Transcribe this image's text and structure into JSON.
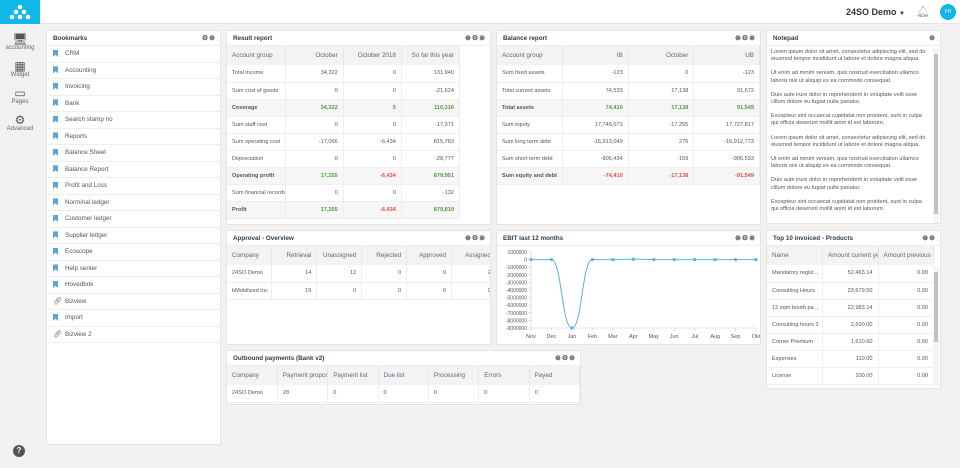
{
  "header": {
    "user": "24SO Demo",
    "avatar": "FH"
  },
  "rail": [
    {
      "label": "accounting",
      "icon": "monitor-icon"
    },
    {
      "label": "Widget",
      "icon": "grid-icon"
    },
    {
      "label": "Pages",
      "icon": "monitor-icon"
    },
    {
      "label": "Advanced",
      "icon": "gear-icon"
    }
  ],
  "bookmarks": {
    "title": "Bookmarks",
    "items": [
      {
        "label": "CRM",
        "icon": "bookmark"
      },
      {
        "label": "Accounting",
        "icon": "bookmark"
      },
      {
        "label": "Invoicing",
        "icon": "bookmark"
      },
      {
        "label": "Bank",
        "icon": "bookmark"
      },
      {
        "label": "Search stamp no",
        "icon": "bookmark"
      },
      {
        "label": "Reports",
        "icon": "bookmark"
      },
      {
        "label": "Balance Sheet",
        "icon": "bookmark"
      },
      {
        "label": "Balance Report",
        "icon": "bookmark"
      },
      {
        "label": "Profit and Loss",
        "icon": "bookmark"
      },
      {
        "label": "Norminal ledger",
        "icon": "bookmark"
      },
      {
        "label": "Customer ledger",
        "icon": "bookmark"
      },
      {
        "label": "Supplier ledger",
        "icon": "bookmark"
      },
      {
        "label": "Ecoscope",
        "icon": "bookmark"
      },
      {
        "label": "Help senter",
        "icon": "bookmark"
      },
      {
        "label": "Hovedbok",
        "icon": "bookmark"
      },
      {
        "label": "Bizview",
        "icon": "link"
      },
      {
        "label": "Import",
        "icon": "bookmark"
      },
      {
        "label": "Bizview 2",
        "icon": "link"
      }
    ]
  },
  "result": {
    "title": "Result report",
    "columns": [
      "Account group",
      "October",
      "October 2018",
      "So far this year"
    ],
    "rows": [
      {
        "cells": [
          "Total income",
          "34,322",
          "0",
          "131,940"
        ]
      },
      {
        "cells": [
          "Sum cost of goods",
          "0",
          "0",
          "-21,624"
        ]
      },
      {
        "cells": [
          "Coverage",
          "34,322",
          "0",
          "110,316"
        ],
        "bold": true,
        "colors": [
          "",
          "g",
          "g",
          "g"
        ]
      },
      {
        "cells": [
          "Sum staff cost",
          "0",
          "0",
          "-17,371"
        ]
      },
      {
        "cells": [
          "Sum operating cost",
          "-17,066",
          "-6,434",
          "815,783"
        ]
      },
      {
        "cells": [
          "Depreciation",
          "0",
          "0",
          "-28,777"
        ]
      },
      {
        "cells": [
          "Operating profit",
          "17,255",
          "-6,434",
          "879,951"
        ],
        "bold": true,
        "colors": [
          "",
          "g",
          "r",
          "g"
        ]
      },
      {
        "cells": [
          "Sum financial records",
          "0",
          "0",
          "-132"
        ]
      },
      {
        "cells": [
          "Profit",
          "17,255",
          "-6,434",
          "879,819"
        ],
        "bold": true,
        "colors": [
          "",
          "g",
          "r",
          "g"
        ]
      }
    ]
  },
  "balance": {
    "title": "Balance report",
    "columns": [
      "Account group",
      "IB",
      "October",
      "UB"
    ],
    "rows": [
      {
        "cells": [
          "Sum fixed assets",
          "-123",
          "0",
          "-123"
        ]
      },
      {
        "cells": [
          "Total current assets",
          "74,533",
          "17,138",
          "91,672"
        ]
      },
      {
        "cells": [
          "Total assets",
          "74,410",
          "17,138",
          "91,549"
        ],
        "bold": true,
        "colors": [
          "",
          "g",
          "g",
          "g"
        ]
      },
      {
        "cells": [
          "Sum equity",
          "17,745,073",
          "-17,255",
          "17,727,817"
        ]
      },
      {
        "cells": [
          "Sum long term debt",
          "-16,913,049",
          "276",
          "-16,912,773"
        ]
      },
      {
        "cells": [
          "Sum short term debt",
          "-906,434",
          "-159",
          "-906,593"
        ]
      },
      {
        "cells": [
          "Sum equity and debt",
          "-74,410",
          "-17,138",
          "-91,549"
        ],
        "bold": true,
        "colors": [
          "",
          "r",
          "r",
          "r"
        ]
      }
    ]
  },
  "notepad": {
    "title": "Notepad",
    "paragraphs": [
      "Lorem ipsum dolor sit amet, consectetur adipiscing elit, sed do eiusmod tempor incididunt ut labore et dolore magna aliqua.",
      "Ut enim ad minim veniam, quis nostrud exercitation ullamco laboris nisi ut aliquip ex ea commodo consequat.",
      "Duis aute irure dolor in reprehenderit in voluptate velit esse cillum dolore eu fugiat nulla pariatur.",
      "Excepteur sint occaecat cupidatat non proident, sunt in culpa qui officia deserunt mollit anim id est laborum.",
      "Lorem ipsum dolor sit amet, consectetur adipiscing elit, sed do eiusmod tempor incididunt ut labore et dolore magna aliqua.",
      "Ut enim ad minim veniam, quis nostrud exercitation ullamco laboris nisi ut aliquip ex ea commodo consequat.",
      "Duis aute irure dolor in reprehenderit in voluptate velit esse cillum dolore eu fugiat nulla pariatur.",
      "Excepteur sint occaecat cupidatat non proident, sunt in culpa qui officia deserunt mollit anim id est laborum."
    ]
  },
  "approval": {
    "title": "Approval - Overview",
    "columns": [
      "Company",
      "Retrieval",
      "Unassigned",
      "Rejected",
      "Approved",
      "Assigned"
    ],
    "rows": [
      {
        "cells": [
          "24SO Demo",
          "14",
          "12",
          "0",
          "9",
          "2"
        ]
      },
      {
        "cells": [
          "bMobilized Inc",
          "19",
          "0",
          "0",
          "0",
          "0"
        ]
      }
    ]
  },
  "top10": {
    "title": "Top 10 invoiced - Products",
    "columns": [
      "Name",
      "Amount current year",
      "Amount previous"
    ],
    "rows": [
      {
        "cells": [
          "Mandatory regist...",
          "52,463.14",
          "0.00"
        ]
      },
      {
        "cells": [
          "Consulting Hours",
          "23,679.50",
          "0.00"
        ]
      },
      {
        "cells": [
          "12 sqm booth pa...",
          "22,983.14",
          "0.00"
        ]
      },
      {
        "cells": [
          "Consulting hours 2",
          "2,500.00",
          "0.00"
        ]
      },
      {
        "cells": [
          "Corner Premium",
          "1,610.60",
          "0.00"
        ]
      },
      {
        "cells": [
          "Expenses",
          "110.00",
          "0.00"
        ]
      },
      {
        "cells": [
          "License",
          "100.00",
          "0.00"
        ]
      }
    ]
  },
  "outbound": {
    "title": "Outbound payments (Bank v2)",
    "columns": [
      "Company",
      "Payment proposal",
      "Payment list",
      "Due list",
      "Processing",
      "Errors",
      "Payed"
    ],
    "rows": [
      {
        "cells": [
          "24SO Demo",
          "28",
          "0",
          "0",
          "0",
          "0",
          "0"
        ]
      }
    ]
  },
  "chart_data": {
    "type": "line",
    "title": "EBIT last 12 months",
    "categories": [
      "Nov",
      "Dec",
      "Jan",
      "Feb",
      "Mar",
      "Apr",
      "May",
      "Jun",
      "Jul",
      "Aug",
      "Sep",
      "Okt"
    ],
    "values": [
      0,
      0,
      -9000000,
      0,
      0,
      50000,
      0,
      0,
      0,
      0,
      0,
      0
    ],
    "ylim": [
      -9000000,
      1000000
    ],
    "yticks": [
      1000000,
      0,
      -1000000,
      -2000000,
      -3000000,
      -4000000,
      -5000000,
      -6000000,
      -7000000,
      -8000000,
      -9000000
    ],
    "color": "#5ab0e0",
    "grid": false
  }
}
